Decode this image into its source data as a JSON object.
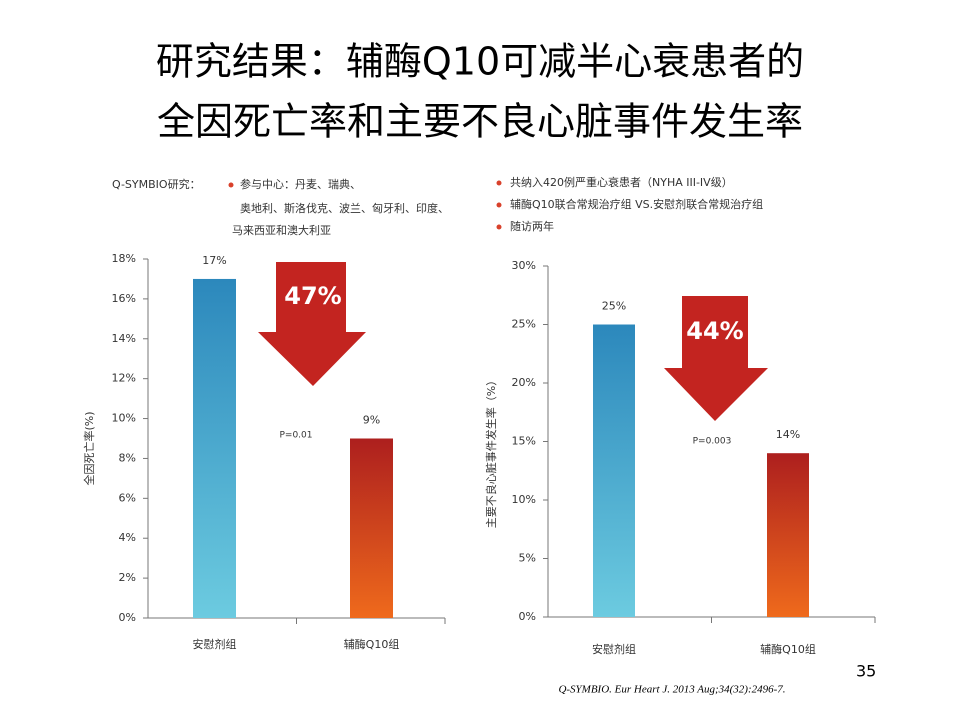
{
  "title_lines": [
    "研究结果：辅酶Q10可减半心衰患者的",
    "全因死亡率和主要不良心脏事件发生率"
  ],
  "study_label": "Q-SYMBIO研究：",
  "left_bullet_lines": [
    "参与中心：丹麦、瑞典、",
    "奥地利、斯洛伐克、波兰、匈牙利、印度、",
    "马来西亚和澳大利亚"
  ],
  "right_bullets": [
    "共纳入420例严重心衰患者（NYHA III-IV级）",
    "辅酶Q10联合常规治疗组 VS.安慰剂联合常规治疗组",
    "随访两年"
  ],
  "page_number": "35",
  "citation": "Q-SYMBIO. Eur Heart J. 2013 Aug;34(32):2496-7.",
  "chart_data": [
    {
      "type": "bar",
      "y_label": "全因死亡率(%)",
      "categories": [
        "安慰剂组",
        "辅酶Q10组"
      ],
      "values": [
        17,
        9
      ],
      "value_labels": [
        "17%",
        "9%"
      ],
      "colors": [
        [
          "#2c88bc",
          "#6ccbe0"
        ],
        [
          "#ad1f1e",
          "#ef6a1c"
        ]
      ],
      "ylim": [
        0,
        18
      ],
      "yticks": [
        {
          "value": 0,
          "label": "0%"
        },
        {
          "value": 2,
          "label": "2%"
        },
        {
          "value": 4,
          "label": "4%"
        },
        {
          "value": 6,
          "label": "6%"
        },
        {
          "value": 8,
          "label": "8%"
        },
        {
          "value": 10,
          "label": "10%"
        },
        {
          "value": 12,
          "label": "12%"
        },
        {
          "value": 14,
          "label": "14%"
        },
        {
          "value": 16,
          "label": "16%"
        },
        {
          "value": 18,
          "label": "18%"
        }
      ],
      "reduction": "47%",
      "p_value": "P=0.01"
    },
    {
      "type": "bar",
      "y_label": "主要不良心脏事件发生率（%）",
      "categories": [
        "安慰剂组",
        "辅酶Q10组"
      ],
      "values": [
        25,
        14
      ],
      "value_labels": [
        "25%",
        "14%"
      ],
      "colors": [
        [
          "#2c88bc",
          "#6ccbe0"
        ],
        [
          "#ad1f1e",
          "#ef6a1c"
        ]
      ],
      "ylim": [
        0,
        30
      ],
      "yticks": [
        {
          "value": 0,
          "label": "0%"
        },
        {
          "value": 5,
          "label": "5%"
        },
        {
          "value": 10,
          "label": "10%"
        },
        {
          "value": 15,
          "label": "15%"
        },
        {
          "value": 20,
          "label": "20%"
        },
        {
          "value": 25,
          "label": "25%"
        },
        {
          "value": 30,
          "label": "30%"
        }
      ],
      "reduction": "44%",
      "p_value": "P=0.003"
    }
  ]
}
